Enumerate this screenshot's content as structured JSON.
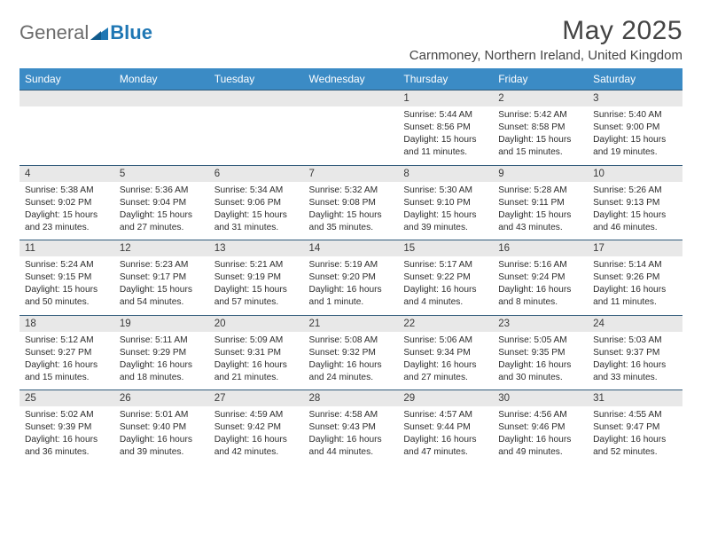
{
  "brand": {
    "name_gray": "General",
    "name_blue": "Blue"
  },
  "title": "May 2025",
  "location": "Carnmoney, Northern Ireland, United Kingdom",
  "colors": {
    "header_bg": "#3b8bc5",
    "header_text": "#ffffff",
    "daynum_bg": "#e8e8e8",
    "row_border": "#2f5a7a",
    "logo_gray": "#6b6b6b",
    "logo_blue": "#1f77b4",
    "body_text": "#2c2c2c"
  },
  "day_headers": [
    "Sunday",
    "Monday",
    "Tuesday",
    "Wednesday",
    "Thursday",
    "Friday",
    "Saturday"
  ],
  "weeks": [
    [
      null,
      null,
      null,
      null,
      {
        "n": "1",
        "sr": "5:44 AM",
        "ss": "8:56 PM",
        "dl": "15 hours and 11 minutes."
      },
      {
        "n": "2",
        "sr": "5:42 AM",
        "ss": "8:58 PM",
        "dl": "15 hours and 15 minutes."
      },
      {
        "n": "3",
        "sr": "5:40 AM",
        "ss": "9:00 PM",
        "dl": "15 hours and 19 minutes."
      }
    ],
    [
      {
        "n": "4",
        "sr": "5:38 AM",
        "ss": "9:02 PM",
        "dl": "15 hours and 23 minutes."
      },
      {
        "n": "5",
        "sr": "5:36 AM",
        "ss": "9:04 PM",
        "dl": "15 hours and 27 minutes."
      },
      {
        "n": "6",
        "sr": "5:34 AM",
        "ss": "9:06 PM",
        "dl": "15 hours and 31 minutes."
      },
      {
        "n": "7",
        "sr": "5:32 AM",
        "ss": "9:08 PM",
        "dl": "15 hours and 35 minutes."
      },
      {
        "n": "8",
        "sr": "5:30 AM",
        "ss": "9:10 PM",
        "dl": "15 hours and 39 minutes."
      },
      {
        "n": "9",
        "sr": "5:28 AM",
        "ss": "9:11 PM",
        "dl": "15 hours and 43 minutes."
      },
      {
        "n": "10",
        "sr": "5:26 AM",
        "ss": "9:13 PM",
        "dl": "15 hours and 46 minutes."
      }
    ],
    [
      {
        "n": "11",
        "sr": "5:24 AM",
        "ss": "9:15 PM",
        "dl": "15 hours and 50 minutes."
      },
      {
        "n": "12",
        "sr": "5:23 AM",
        "ss": "9:17 PM",
        "dl": "15 hours and 54 minutes."
      },
      {
        "n": "13",
        "sr": "5:21 AM",
        "ss": "9:19 PM",
        "dl": "15 hours and 57 minutes."
      },
      {
        "n": "14",
        "sr": "5:19 AM",
        "ss": "9:20 PM",
        "dl": "16 hours and 1 minute."
      },
      {
        "n": "15",
        "sr": "5:17 AM",
        "ss": "9:22 PM",
        "dl": "16 hours and 4 minutes."
      },
      {
        "n": "16",
        "sr": "5:16 AM",
        "ss": "9:24 PM",
        "dl": "16 hours and 8 minutes."
      },
      {
        "n": "17",
        "sr": "5:14 AM",
        "ss": "9:26 PM",
        "dl": "16 hours and 11 minutes."
      }
    ],
    [
      {
        "n": "18",
        "sr": "5:12 AM",
        "ss": "9:27 PM",
        "dl": "16 hours and 15 minutes."
      },
      {
        "n": "19",
        "sr": "5:11 AM",
        "ss": "9:29 PM",
        "dl": "16 hours and 18 minutes."
      },
      {
        "n": "20",
        "sr": "5:09 AM",
        "ss": "9:31 PM",
        "dl": "16 hours and 21 minutes."
      },
      {
        "n": "21",
        "sr": "5:08 AM",
        "ss": "9:32 PM",
        "dl": "16 hours and 24 minutes."
      },
      {
        "n": "22",
        "sr": "5:06 AM",
        "ss": "9:34 PM",
        "dl": "16 hours and 27 minutes."
      },
      {
        "n": "23",
        "sr": "5:05 AM",
        "ss": "9:35 PM",
        "dl": "16 hours and 30 minutes."
      },
      {
        "n": "24",
        "sr": "5:03 AM",
        "ss": "9:37 PM",
        "dl": "16 hours and 33 minutes."
      }
    ],
    [
      {
        "n": "25",
        "sr": "5:02 AM",
        "ss": "9:39 PM",
        "dl": "16 hours and 36 minutes."
      },
      {
        "n": "26",
        "sr": "5:01 AM",
        "ss": "9:40 PM",
        "dl": "16 hours and 39 minutes."
      },
      {
        "n": "27",
        "sr": "4:59 AM",
        "ss": "9:42 PM",
        "dl": "16 hours and 42 minutes."
      },
      {
        "n": "28",
        "sr": "4:58 AM",
        "ss": "9:43 PM",
        "dl": "16 hours and 44 minutes."
      },
      {
        "n": "29",
        "sr": "4:57 AM",
        "ss": "9:44 PM",
        "dl": "16 hours and 47 minutes."
      },
      {
        "n": "30",
        "sr": "4:56 AM",
        "ss": "9:46 PM",
        "dl": "16 hours and 49 minutes."
      },
      {
        "n": "31",
        "sr": "4:55 AM",
        "ss": "9:47 PM",
        "dl": "16 hours and 52 minutes."
      }
    ]
  ],
  "labels": {
    "sunrise": "Sunrise:",
    "sunset": "Sunset:",
    "daylight": "Daylight:"
  }
}
